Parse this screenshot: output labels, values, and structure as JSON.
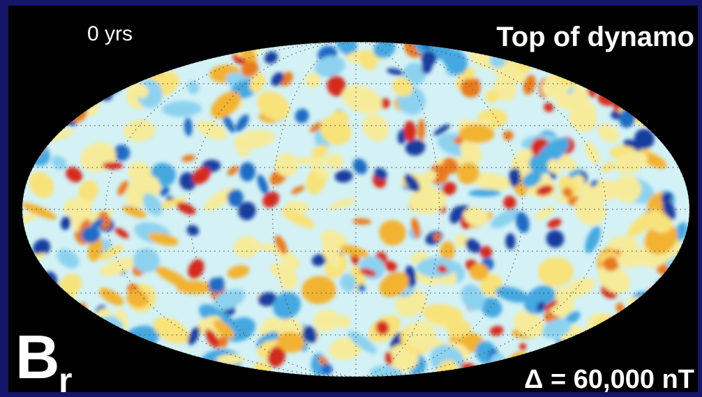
{
  "labels": {
    "time": "0 yrs",
    "title": "Top of dynamo",
    "field": "B",
    "field_subscript": "r",
    "scale": "Δ = 60,000 nT"
  }
}
